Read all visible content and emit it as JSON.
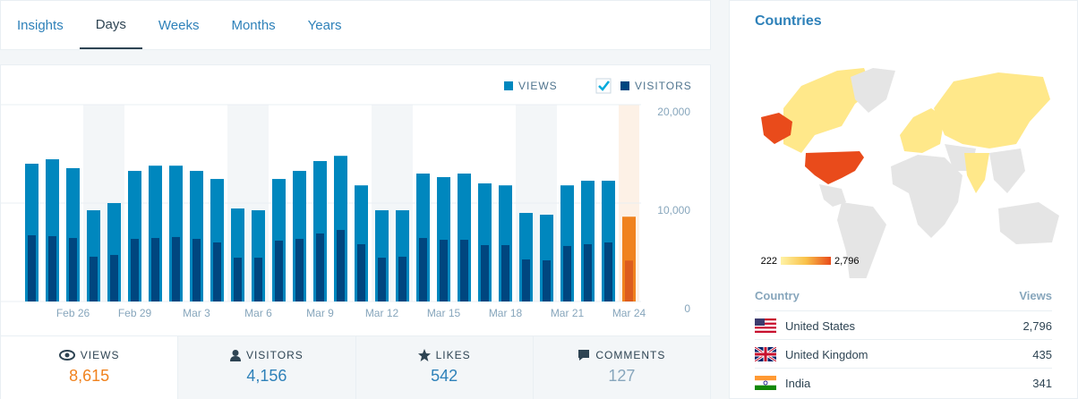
{
  "tabs": [
    "Insights",
    "Days",
    "Weeks",
    "Months",
    "Years"
  ],
  "chart_data": {
    "type": "bar",
    "categories": [
      null,
      null,
      "Feb 26",
      null,
      null,
      "Feb 29",
      null,
      null,
      "Mar 3",
      null,
      null,
      "Mar 6",
      null,
      null,
      "Mar 9",
      null,
      null,
      "Mar 12",
      null,
      null,
      "Mar 15",
      null,
      null,
      "Mar 18",
      null,
      null,
      "Mar 21",
      null,
      null,
      "Mar 24"
    ],
    "series": [
      {
        "name": "VIEWS",
        "color": "#0087be",
        "highlight_color": "#f0821e",
        "values": [
          14000,
          14450,
          13550,
          9270,
          10000,
          13270,
          13800,
          13800,
          13270,
          12450,
          9450,
          9270,
          12450,
          13270,
          14270,
          14800,
          11800,
          9270,
          9270,
          13000,
          12640,
          13000,
          12000,
          11800,
          9000,
          8820,
          11800,
          12270,
          12270,
          8615
        ]
      },
      {
        "name": "VISITORS",
        "color": "#00467f",
        "highlight_color": "#dc5c1e",
        "values": [
          6730,
          6640,
          6450,
          4550,
          4730,
          6360,
          6450,
          6550,
          6360,
          6000,
          4450,
          4450,
          6180,
          6360,
          6910,
          7270,
          5820,
          4450,
          4550,
          6450,
          6270,
          6270,
          5730,
          5730,
          4270,
          4180,
          5640,
          5820,
          6000,
          4156
        ]
      }
    ],
    "ylim": [
      0,
      20000
    ],
    "yticks": [
      0,
      {
        "value": 10000,
        "label": "10,000"
      },
      {
        "value": 20000,
        "label": "20,000"
      }
    ],
    "grid": true,
    "legend": "top-right"
  },
  "summary": [
    {
      "label": "VIEWS",
      "value": "8,615"
    },
    {
      "label": "VISITORS",
      "value": "4,156"
    },
    {
      "label": "LIKES",
      "value": "542"
    },
    {
      "label": "COMMENTS",
      "value": "127"
    }
  ],
  "countries": {
    "title": "Countries",
    "legend_min": "222",
    "legend_max": "2,796",
    "columns": [
      "Country",
      "Views"
    ],
    "rows": [
      [
        "United States",
        "2,796"
      ],
      [
        "United Kingdom",
        "435"
      ],
      [
        "India",
        "341"
      ]
    ]
  }
}
